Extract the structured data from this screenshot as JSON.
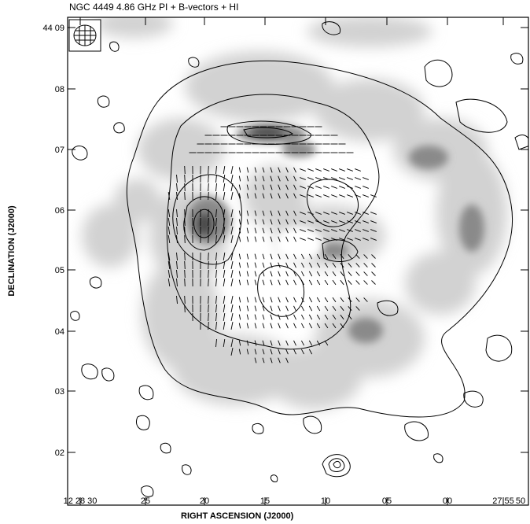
{
  "title": "NGC 4449 4.86 GHz PI + B-vectors + HI",
  "xlabel": "RIGHT ASCENSION (J2000)",
  "ylabel": "DECLINATION (J2000)",
  "x_ticks": [
    "12 28 30",
    "25",
    "20",
    "15",
    "10",
    "05",
    "00",
    "27 55",
    "50"
  ],
  "y_ticks": [
    "44 09",
    "08",
    "07",
    "06",
    "05",
    "04",
    "03",
    "02"
  ],
  "colors": {
    "greyscale_dark": "#404040",
    "greyscale_light": "#e6e6e6",
    "lines": "#000000"
  },
  "beam_icon": "beam-ellipse-icon"
}
